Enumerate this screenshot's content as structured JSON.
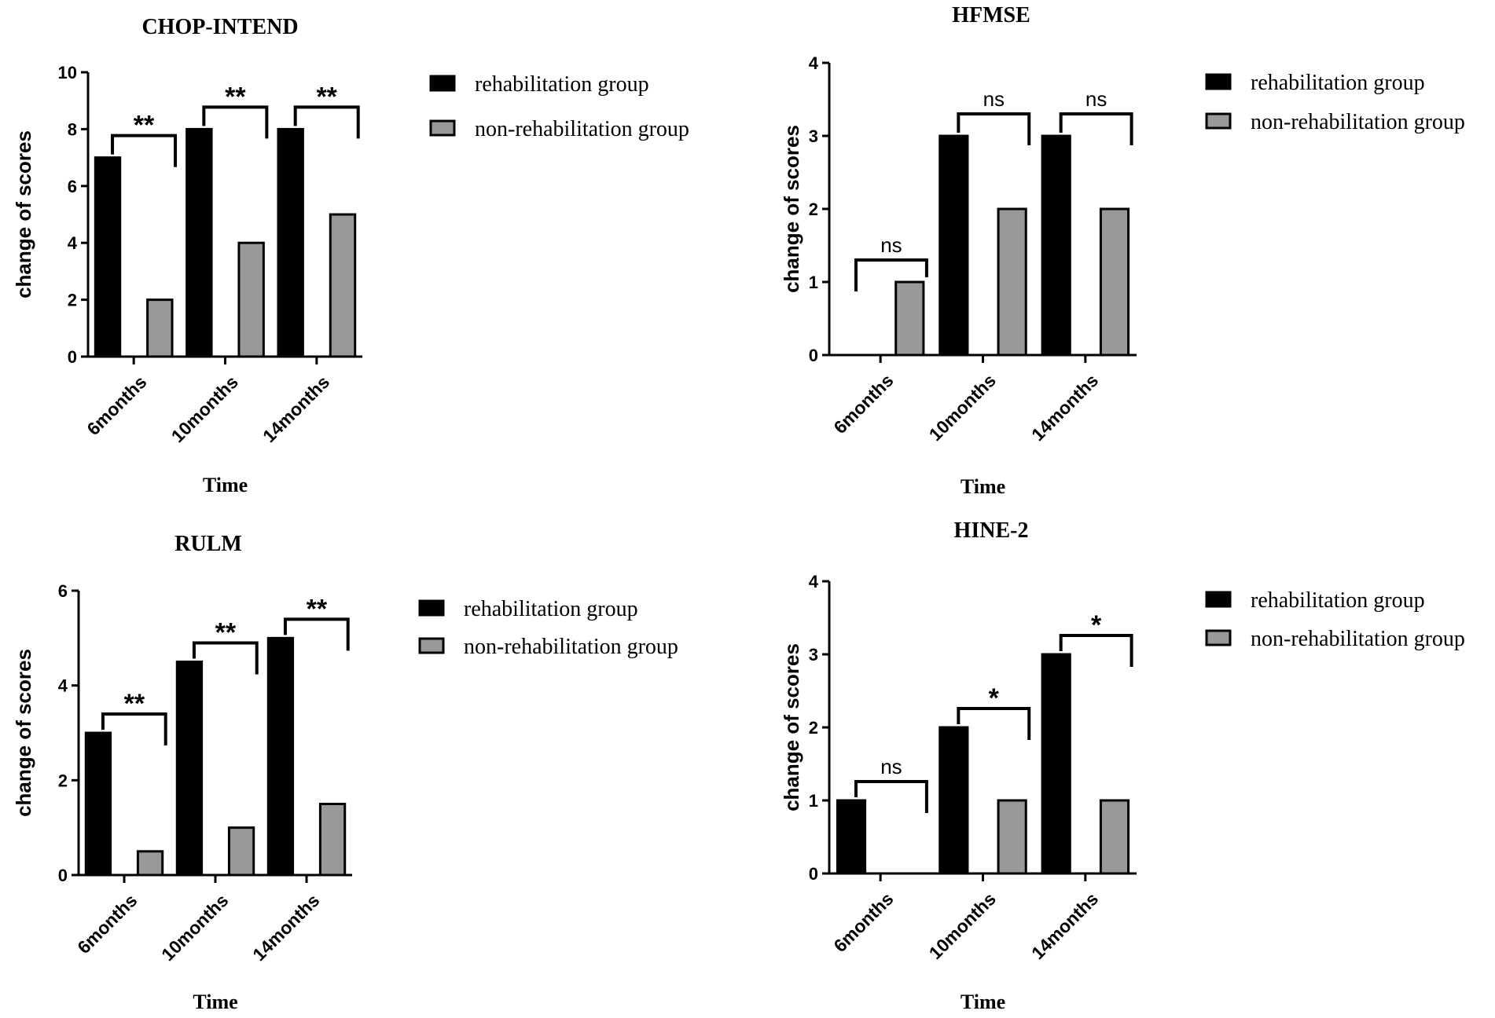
{
  "colors": {
    "rehabilitation": "#000000",
    "non_rehabilitation": "#999999",
    "axis": "#000000"
  },
  "legend": {
    "series_a": "rehabilitation group",
    "series_b": "non-rehabilitation group"
  },
  "chart_data": [
    {
      "type": "bar",
      "title": "CHOP-INTEND",
      "xlabel": "Time",
      "ylabel": "change of scores",
      "categories": [
        "6months",
        "10months",
        "14months"
      ],
      "yticks": [
        "0",
        "2",
        "4",
        "6",
        "8",
        "10"
      ],
      "ylim": [
        0,
        10
      ],
      "series": [
        {
          "name": "rehabilitation group",
          "values": [
            7,
            8,
            8
          ]
        },
        {
          "name": "non-rehabilitation group",
          "values": [
            2,
            4,
            5
          ]
        }
      ],
      "significance": [
        "**",
        "**",
        "**"
      ],
      "legend_position": "right"
    },
    {
      "type": "bar",
      "title": "HFMSE",
      "xlabel": "Time",
      "ylabel": "change of scores",
      "categories": [
        "6months",
        "10months",
        "14months"
      ],
      "yticks": [
        "0",
        "1",
        "2",
        "3",
        "4"
      ],
      "ylim": [
        0,
        4
      ],
      "series": [
        {
          "name": "rehabilitation group",
          "values": [
            0,
            3,
            3
          ]
        },
        {
          "name": "non-rehabilitation group",
          "values": [
            1,
            2,
            2
          ]
        }
      ],
      "significance": [
        "ns",
        "ns",
        "ns"
      ],
      "legend_position": "right"
    },
    {
      "type": "bar",
      "title": "RULM",
      "xlabel": "Time",
      "ylabel": "change of scores",
      "categories": [
        "6months",
        "10months",
        "14months"
      ],
      "yticks": [
        "0",
        "2",
        "4",
        "6"
      ],
      "ylim": [
        0,
        6
      ],
      "series": [
        {
          "name": "rehabilitation group",
          "values": [
            3,
            4.5,
            5
          ]
        },
        {
          "name": "non-rehabilitation group",
          "values": [
            0.5,
            1,
            1.5
          ]
        }
      ],
      "significance": [
        "**",
        "**",
        "**"
      ],
      "legend_position": "right"
    },
    {
      "type": "bar",
      "title": "HINE-2",
      "xlabel": "Time",
      "ylabel": "change of scores",
      "categories": [
        "6months",
        "10months",
        "14months"
      ],
      "yticks": [
        "0",
        "1",
        "2",
        "3",
        "4"
      ],
      "ylim": [
        0,
        4
      ],
      "series": [
        {
          "name": "rehabilitation group",
          "values": [
            1,
            2,
            3
          ]
        },
        {
          "name": "non-rehabilitation group",
          "values": [
            0,
            1,
            1
          ]
        }
      ],
      "significance": [
        "ns",
        "*",
        "*"
      ],
      "legend_position": "right"
    }
  ]
}
